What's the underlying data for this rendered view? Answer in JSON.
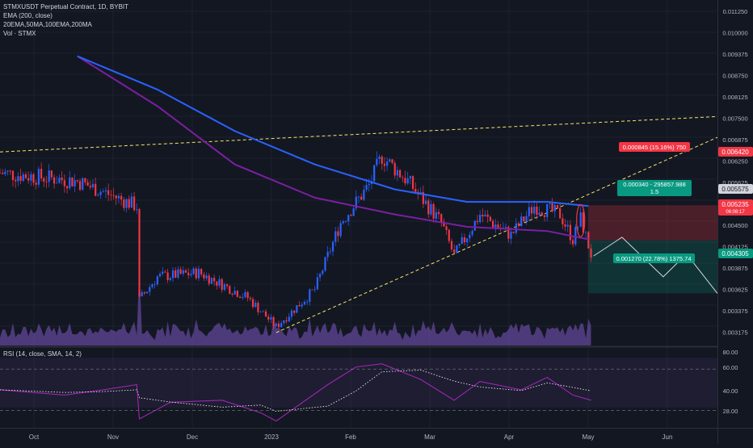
{
  "header": {
    "symbol_line": "STMXUSDT Perpetual Contract, 1D, BYBIT",
    "indicator_1": "EMA (200, close)",
    "indicator_2": "20EMA,50MA,100EMA,200MA",
    "indicator_3": "Vol · STMX"
  },
  "rsi_panel": {
    "title": "RSI (14, close, SMA, 14, 2)"
  },
  "colors": {
    "background": "#131722",
    "up": "#2962ff",
    "down": "#f23645",
    "ema200": "#2962ff",
    "ma200": "#7b1fa2",
    "rsi": "#9c27b0",
    "trend": "#f7e36b",
    "stop": "#f23645",
    "target": "#089981"
  },
  "price_axis": {
    "labels": [
      "0.011250",
      "0.010000",
      "0.009375",
      "0.008750",
      "0.008125",
      "0.007500",
      "0.006875",
      "0.006250",
      "0.005625",
      "0.004875",
      "0.004500",
      "0.004125",
      "0.003875",
      "0.003625",
      "0.003375",
      "0.003175"
    ],
    "current_price": "0.005575",
    "red_tag_1": "0.006420",
    "red_tag_2": "0.005235",
    "red_tag_2_sub": "06:08:17",
    "green_tag": "0.004305"
  },
  "rsi_axis": {
    "labels": [
      "80.00",
      "60.00",
      "40.00",
      "28.00"
    ]
  },
  "time_axis": {
    "labels": [
      "Oct",
      "Nov",
      "Dec",
      "2023",
      "Feb",
      "Mar",
      "Apr",
      "May",
      "Jun"
    ]
  },
  "position": {
    "stop_label": "0.000845 (15.16%) 750",
    "entry_label_1": "0.000340 - 295857.988",
    "entry_label_2": "1.5",
    "target_label": "0.001270 (22.78%) 1375.74"
  },
  "chart_data": {
    "type": "candlestick",
    "title": "STMXUSDT Perpetual Contract, 1D, BYBIT",
    "y_range": [
      0.00305,
      0.01135
    ],
    "x_range": [
      "2022-09-15",
      "2023-06-20"
    ],
    "key_prices": [
      {
        "date": "2022-09-15",
        "close": 0.0072
      },
      {
        "date": "2022-10-15",
        "close": 0.007
      },
      {
        "date": "2022-11-07",
        "close": 0.0064
      },
      {
        "date": "2022-11-08",
        "close": 0.00415
      },
      {
        "date": "2022-11-15",
        "close": 0.0047
      },
      {
        "date": "2022-12-01",
        "close": 0.0048
      },
      {
        "date": "2022-12-20",
        "close": 0.0042
      },
      {
        "date": "2022-12-31",
        "close": 0.0035
      },
      {
        "date": "2023-01-15",
        "close": 0.0044
      },
      {
        "date": "2023-01-25",
        "close": 0.006
      },
      {
        "date": "2023-02-05",
        "close": 0.0069
      },
      {
        "date": "2023-02-10",
        "close": 0.0076
      },
      {
        "date": "2023-02-20",
        "close": 0.007
      },
      {
        "date": "2023-03-05",
        "close": 0.006
      },
      {
        "date": "2023-03-10",
        "close": 0.0052
      },
      {
        "date": "2023-03-20",
        "close": 0.0062
      },
      {
        "date": "2023-04-01",
        "close": 0.0057
      },
      {
        "date": "2023-04-10",
        "close": 0.0064
      },
      {
        "date": "2023-04-20",
        "close": 0.0062
      },
      {
        "date": "2023-04-25",
        "close": 0.0056
      },
      {
        "date": "2023-04-28",
        "close": 0.0061
      },
      {
        "date": "2023-05-02",
        "close": 0.00523
      }
    ],
    "ema200_points": [
      {
        "date": "2022-10-15",
        "value": 0.01
      },
      {
        "date": "2022-11-15",
        "value": 0.0092
      },
      {
        "date": "2022-12-15",
        "value": 0.0082
      },
      {
        "date": "2023-01-15",
        "value": 0.0074
      },
      {
        "date": "2023-02-15",
        "value": 0.0068
      },
      {
        "date": "2023-03-15",
        "value": 0.0065
      },
      {
        "date": "2023-04-15",
        "value": 0.0065
      },
      {
        "date": "2023-05-01",
        "value": 0.0064
      }
    ],
    "ma200_points": [
      {
        "date": "2022-10-15",
        "value": 0.01
      },
      {
        "date": "2022-11-15",
        "value": 0.0088
      },
      {
        "date": "2022-12-15",
        "value": 0.0074
      },
      {
        "date": "2023-01-15",
        "value": 0.0066
      },
      {
        "date": "2023-02-15",
        "value": 0.0062
      },
      {
        "date": "2023-03-15",
        "value": 0.0059
      },
      {
        "date": "2023-04-15",
        "value": 0.0058
      },
      {
        "date": "2023-05-01",
        "value": 0.0056
      }
    ],
    "trendlines": [
      {
        "from": {
          "date": "2022-09-15",
          "price": 0.0077
        },
        "to": {
          "date": "2023-06-20",
          "price": 0.00855
        }
      },
      {
        "from": {
          "date": "2022-12-31",
          "price": 0.00336
        },
        "to": {
          "date": "2023-06-20",
          "price": 0.00805
        }
      }
    ],
    "position_tool": {
      "start_date": "2023-05-01",
      "end_date": "2023-06-20",
      "entry": 0.005575,
      "stop": 0.00642,
      "target": 0.004305
    },
    "rsi": {
      "y_range": [
        15,
        88
      ],
      "points": [
        {
          "date": "2022-09-15",
          "value": 50
        },
        {
          "date": "2022-10-10",
          "value": 45
        },
        {
          "date": "2022-10-25",
          "value": 50
        },
        {
          "date": "2022-11-07",
          "value": 55
        },
        {
          "date": "2022-11-08",
          "value": 22
        },
        {
          "date": "2022-11-20",
          "value": 38
        },
        {
          "date": "2022-12-10",
          "value": 40
        },
        {
          "date": "2022-12-25",
          "value": 28
        },
        {
          "date": "2022-12-31",
          "value": 20
        },
        {
          "date": "2023-01-20",
          "value": 55
        },
        {
          "date": "2023-01-31",
          "value": 72
        },
        {
          "date": "2023-02-10",
          "value": 75
        },
        {
          "date": "2023-02-25",
          "value": 60
        },
        {
          "date": "2023-03-10",
          "value": 40
        },
        {
          "date": "2023-03-20",
          "value": 58
        },
        {
          "date": "2023-04-05",
          "value": 50
        },
        {
          "date": "2023-04-15",
          "value": 62
        },
        {
          "date": "2023-04-25",
          "value": 45
        },
        {
          "date": "2023-05-02",
          "value": 40
        }
      ],
      "levels": [
        70,
        30
      ]
    }
  }
}
